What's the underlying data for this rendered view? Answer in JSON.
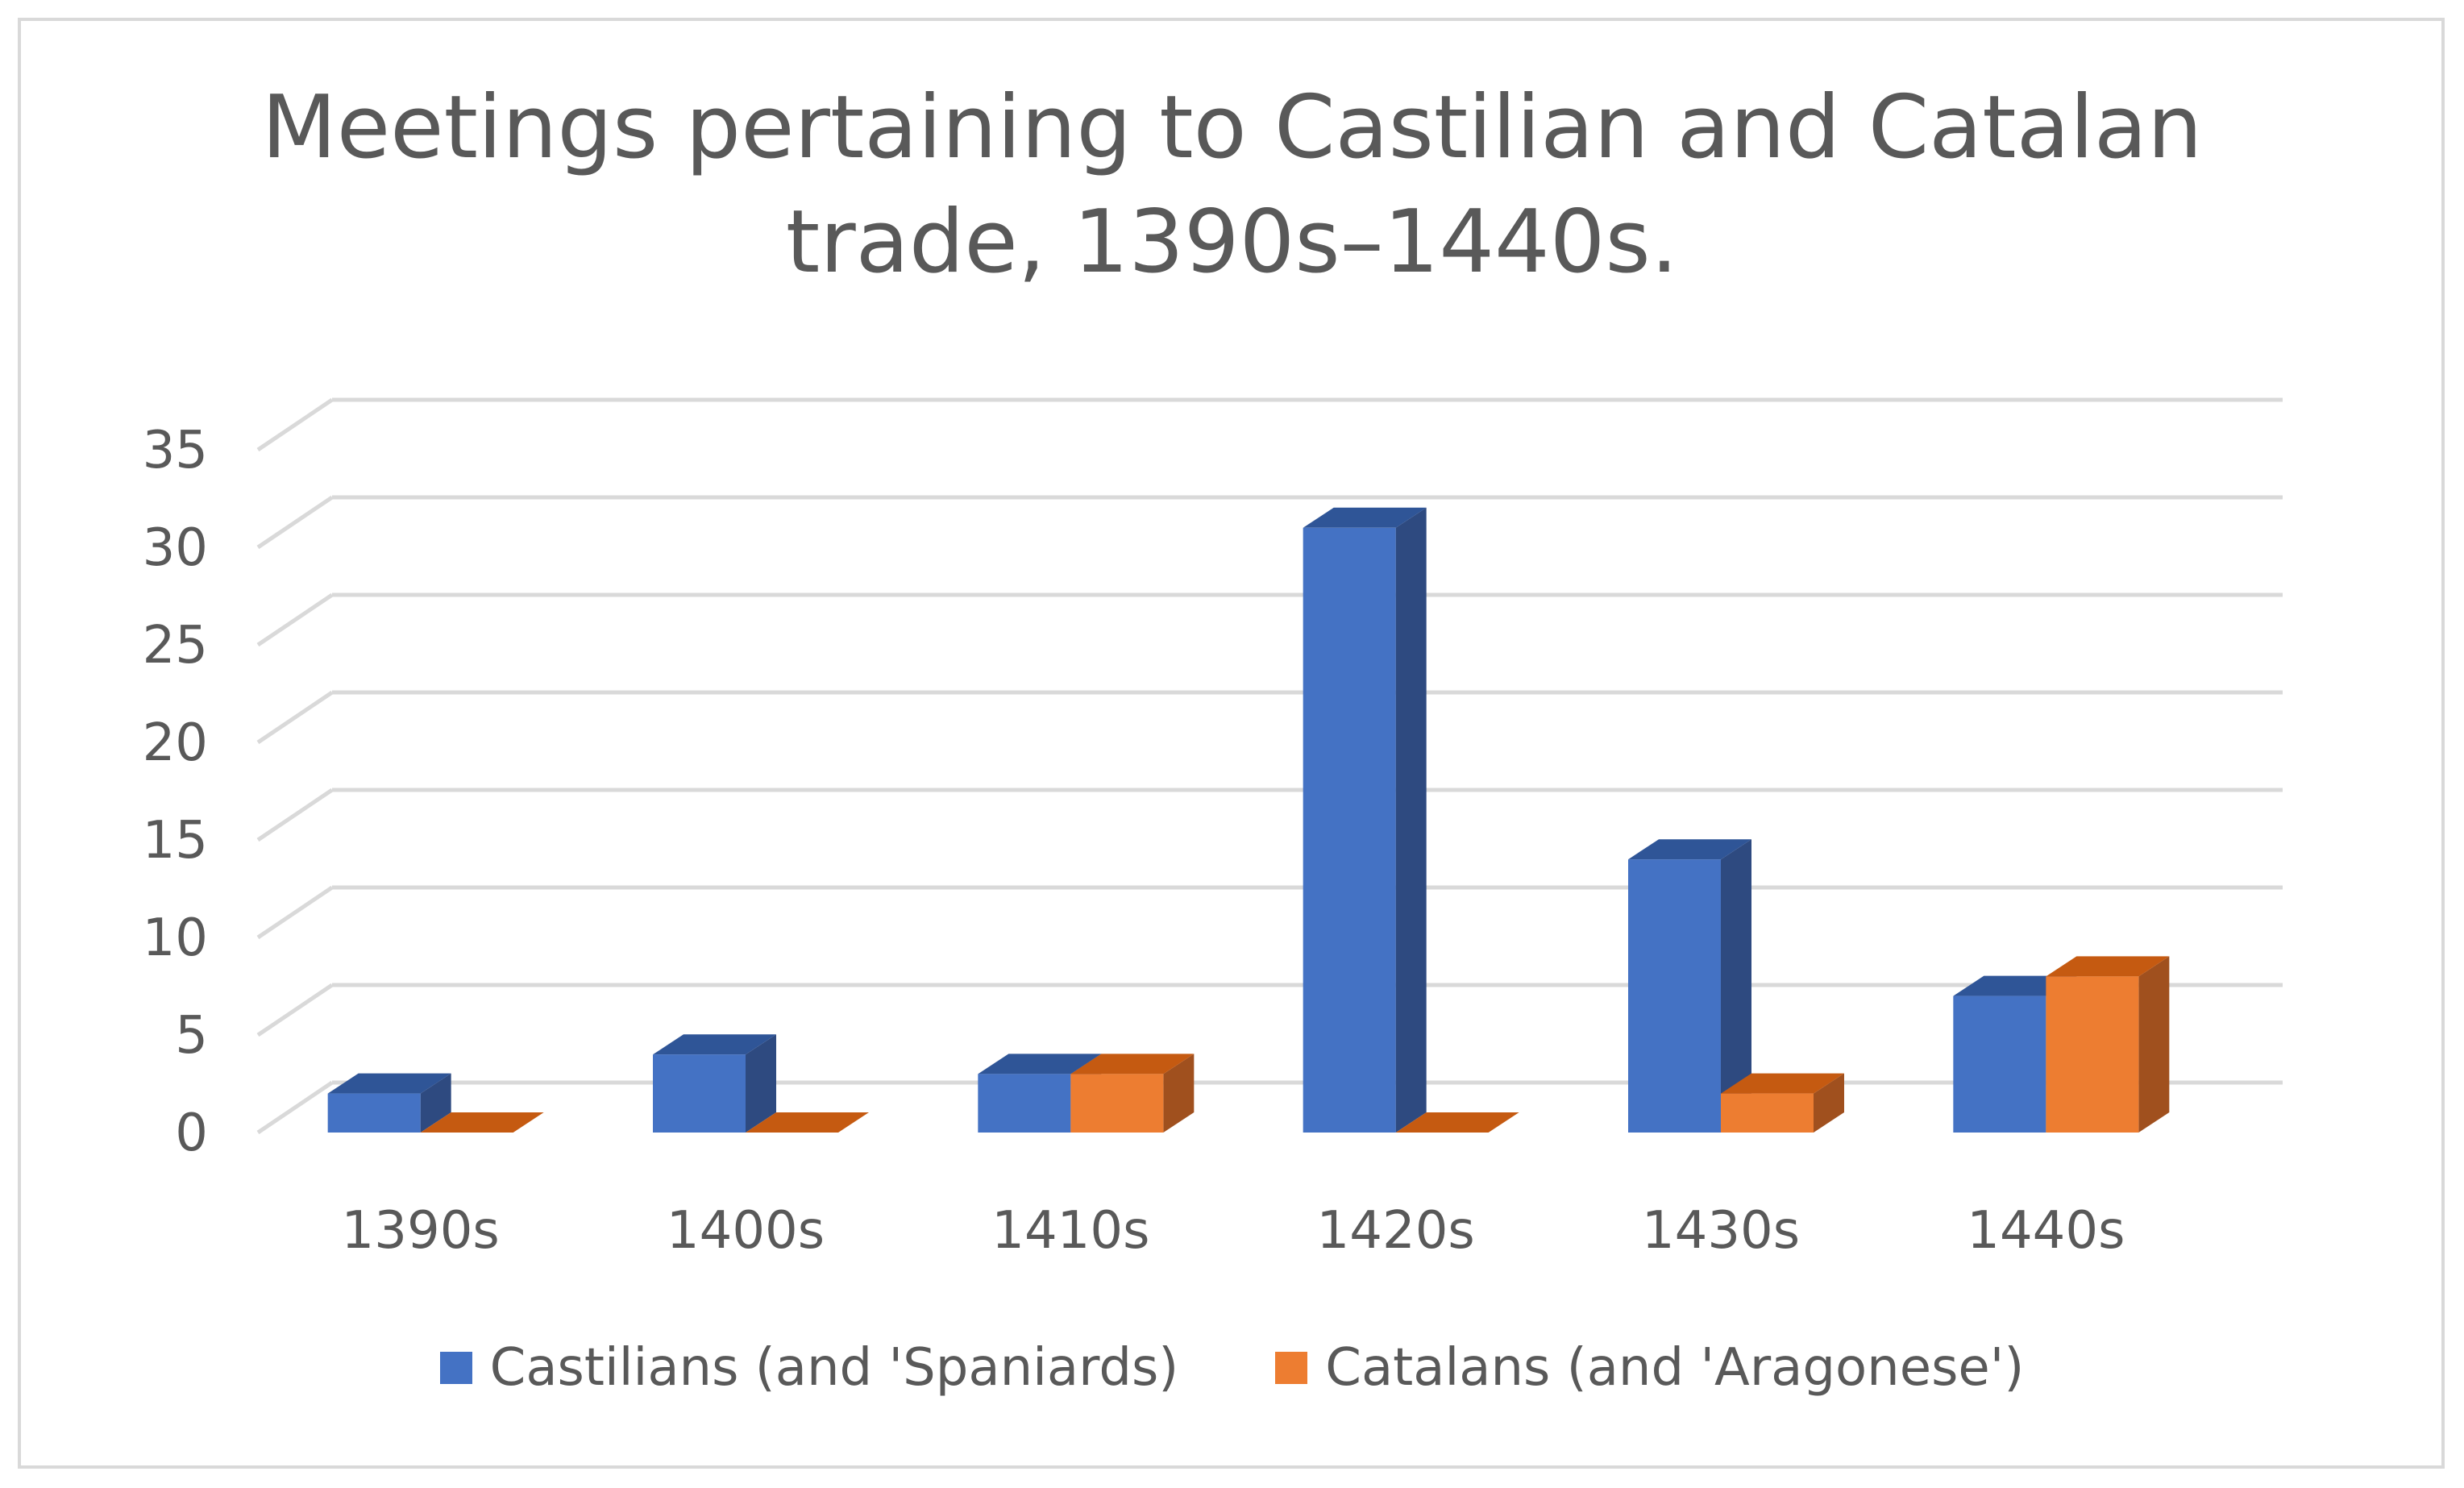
{
  "chart_data": {
    "type": "bar",
    "title": [
      "Meetings pertaining to Castilian and Catalan",
      "trade, 1390s–1440s."
    ],
    "categories": [
      "1390s",
      "1400s",
      "1410s",
      "1420s",
      "1430s",
      "1440s"
    ],
    "series": [
      {
        "name": "Castilians (and 'Spaniards)",
        "values": [
          2,
          4,
          3,
          31,
          14,
          7
        ],
        "color": "#4472C4",
        "top_color": "#2F5597",
        "side_color": "#2E4A80"
      },
      {
        "name": "Catalans (and 'Aragonese')",
        "values": [
          0,
          0,
          3,
          0,
          2,
          8
        ],
        "color": "#ED7D31",
        "top_color": "#C55A11",
        "side_color": "#A0501E"
      }
    ],
    "y_ticks": [
      "0",
      "5",
      "10",
      "15",
      "20",
      "25",
      "30",
      "35"
    ],
    "ylim": [
      0,
      35
    ],
    "xlabel": "",
    "ylabel": "",
    "grid": true,
    "legend_position": "bottom"
  }
}
